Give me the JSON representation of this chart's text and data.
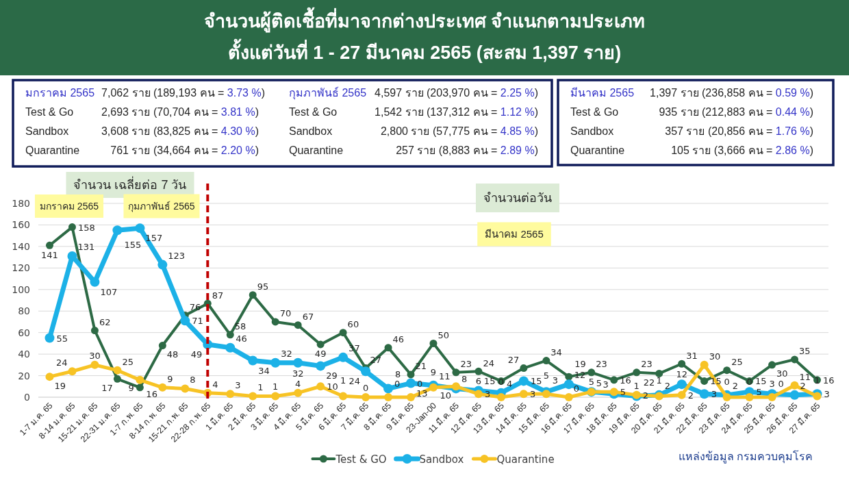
{
  "chart_data": {
    "type": "line",
    "title": "จำนวนผู้ติดเชื้อที่มาจากต่างประเทศ จำแนกตามประเภท",
    "subtitle": "ตั้งแต่วันที่ 1 - 27 มีนาคม 2565 (สะสม 1,397 ราย)",
    "categories": [
      "1-7 ม.ค. 65",
      "8-14 ม.ค. 65",
      "15-21 ม.ค. 65",
      "22-31 ม.ค. 65",
      "1-7 ก.พ. 65",
      "8-14 ก.พ. 65",
      "15-21 ก.พ. 65",
      "22-28 ก.พ. 65",
      "1 มี.ค. 65",
      "2 มี.ค. 65",
      "3 มี.ค. 65",
      "4 มี.ค. 65",
      "5 มี.ค. 65",
      "6 มี.ค. 65",
      "7 มี.ค. 65",
      "8 มี.ค. 65",
      "9 มี.ค. 65",
      "23-Jan-00",
      "11 มี.ค. 65",
      "12 มี.ค. 65",
      "13 มี.ค. 65",
      "14 มี.ค. 65",
      "15 มี.ค. 65",
      "16 มี.ค. 65",
      "17 มี.ค. 65",
      "18 มี.ค. 65",
      "19 มี.ค. 65",
      "20 มี.ค. 65",
      "21 มี.ค. 65",
      "22 มี.ค. 65",
      "23 มี.ค. 65",
      "24 มี.ค. 65",
      "25 มี.ค. 65",
      "26 มี.ค. 65",
      "27 มี.ค. 65"
    ],
    "series": [
      {
        "name": "Test & GO",
        "color": "#2d6a45",
        "values": [
          141,
          158,
          62,
          17,
          9,
          48,
          76,
          87,
          58,
          95,
          70,
          67,
          49,
          60,
          27,
          46,
          21,
          50,
          23,
          24,
          15,
          27,
          34,
          19,
          23,
          16,
          23,
          22,
          31,
          15,
          25,
          15,
          30,
          35,
          16
        ]
      },
      {
        "name": "Sandbox",
        "color": "#1cb1e7",
        "values": [
          55,
          131,
          107,
          155,
          157,
          123,
          71,
          49,
          46,
          34,
          32,
          32,
          29,
          37,
          24,
          8,
          13,
          11,
          8,
          6,
          4,
          15,
          5,
          12,
          5,
          3,
          1,
          2,
          12,
          3,
          2,
          5,
          3,
          2,
          3
        ]
      },
      {
        "name": "Quarantine",
        "color": "#f7c325",
        "values": [
          19,
          24,
          30,
          25,
          16,
          9,
          8,
          4,
          3,
          1,
          1,
          4,
          10,
          1,
          0,
          0,
          0,
          9,
          10,
          3,
          0,
          3,
          3,
          0,
          5,
          5,
          2,
          1,
          2,
          30,
          0,
          0,
          0,
          11,
          1
        ]
      }
    ],
    "ylim": [
      0,
      180
    ],
    "yticks": [
      0,
      20,
      40,
      60,
      80,
      100,
      120,
      140,
      160,
      180
    ],
    "grid": "y",
    "legend": "bottom",
    "marker": "circle",
    "line_style": "solid",
    "data_labels": true,
    "ref_lines": [
      {
        "axis": "x",
        "value": "22-28 ก.พ. 65",
        "color": "#c00000",
        "line_style": "dashed"
      }
    ],
    "annotations": [
      "มกราคม 2565",
      "7,062 ราย (189,193 คน = 3.73 %)",
      "Test & Go",
      "2,693 ราย (70,704 คน = 3.81 %)",
      "Sandbox",
      "3,608 ราย (83,825 คน = 4.30 %)",
      "Quarantine",
      "761 ราย (34,664 คน = 2.20 %)",
      "กุมภาพันธ์ 2565",
      "4,597 ราย (203,970 คน = 2.25 %)",
      "Test & Go",
      "1,542 ราย (137,312 คน = 1.12 %)",
      "Sandbox",
      "2,800 ราย (57,775 คน = 4.85 %)",
      "Quarantine",
      "257 ราย (8,883 คน = 2.89 %)",
      "มีนาคม 2565",
      "1,397 ราย (236,858 คน = 0.59 %)",
      "Test & Go",
      "935 ราย (212,883 คน = 0.44 %)",
      "Sandbox",
      "357 ราย (20,856 คน = 1.76 %)",
      "Quarantine",
      "105 ราย (3,666 คน = 2.86 %)",
      "จำนวน เฉลี่ยต่อ 7 วัน",
      "มกราคม 2565",
      "กุมภาพันธ์ 2565",
      "จำนวนต่อวัน",
      "มีนาคม 2565",
      "แหล่งข้อมูล กรมควบคุมโรค"
    ]
  }
}
